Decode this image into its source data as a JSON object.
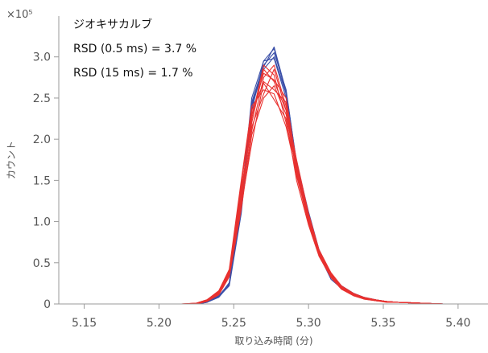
{
  "chart_data": {
    "type": "line",
    "xlabel": "取り込み時間 (分)",
    "ylabel": "カウント",
    "y_multiplier": "×10⁵",
    "xlim": [
      5.133,
      5.42
    ],
    "ylim": [
      0,
      3.3
    ],
    "x_ticks": [
      "5.15",
      "5.20",
      "5.25",
      "5.30",
      "5.35",
      "5.40"
    ],
    "y_ticks": [
      "0",
      "0.5",
      "1.0",
      "1.5",
      "2.0",
      "2.5",
      "3.0"
    ],
    "annotations": [
      "ジオキサカルブ",
      "RSD (0.5 ms) = 3.7 %",
      "RSD (15 ms) = 1.7 %"
    ],
    "grid": false,
    "colors": {
      "blue": "#3a4fa8",
      "red": "#e8312f"
    },
    "x": [
      5.133,
      5.2,
      5.215,
      5.225,
      5.232,
      5.24,
      5.247,
      5.255,
      5.262,
      5.27,
      5.277,
      5.285,
      5.292,
      5.3,
      5.307,
      5.315,
      5.322,
      5.33,
      5.337,
      5.345,
      5.352,
      5.36,
      5.375,
      5.39,
      5.42
    ],
    "series": [
      {
        "color": "blue",
        "values": [
          0,
          0,
          0,
          0,
          0.02,
          0.09,
          0.22,
          1.1,
          2.35,
          2.95,
          3.1,
          2.55,
          1.65,
          1.05,
          0.62,
          0.32,
          0.2,
          0.12,
          0.08,
          0.05,
          0.03,
          0.02,
          0.01,
          0,
          0
        ]
      },
      {
        "color": "blue",
        "values": [
          0,
          0,
          0,
          0,
          0.03,
          0.1,
          0.25,
          1.2,
          2.45,
          2.9,
          3.05,
          2.6,
          1.7,
          1.1,
          0.65,
          0.35,
          0.22,
          0.13,
          0.08,
          0.05,
          0.03,
          0.02,
          0.01,
          0,
          0
        ]
      },
      {
        "color": "blue",
        "values": [
          0,
          0,
          0,
          0,
          0.02,
          0.1,
          0.24,
          1.15,
          2.4,
          2.85,
          3.0,
          2.55,
          1.68,
          1.08,
          0.63,
          0.33,
          0.21,
          0.12,
          0.07,
          0.05,
          0.03,
          0.02,
          0.01,
          0,
          0
        ]
      },
      {
        "color": "blue",
        "values": [
          0,
          0,
          0,
          0,
          0.03,
          0.09,
          0.26,
          1.25,
          2.5,
          2.95,
          2.98,
          2.5,
          1.62,
          1.03,
          0.6,
          0.3,
          0.19,
          0.11,
          0.07,
          0.04,
          0.03,
          0.02,
          0.01,
          0,
          0
        ]
      },
      {
        "color": "blue",
        "values": [
          0,
          0,
          0,
          0,
          0.02,
          0.08,
          0.23,
          1.18,
          2.42,
          2.88,
          3.12,
          2.58,
          1.72,
          1.12,
          0.66,
          0.36,
          0.22,
          0.13,
          0.08,
          0.05,
          0.03,
          0.02,
          0.01,
          0,
          0
        ]
      },
      {
        "color": "red",
        "values": [
          0,
          0,
          0,
          0,
          0.04,
          0.12,
          0.35,
          1.3,
          2.3,
          2.8,
          2.72,
          2.5,
          1.7,
          1.05,
          0.63,
          0.36,
          0.2,
          0.12,
          0.07,
          0.05,
          0.03,
          0.02,
          0.01,
          0,
          0
        ]
      },
      {
        "color": "red",
        "values": [
          0,
          0,
          0,
          0.01,
          0.05,
          0.15,
          0.4,
          1.4,
          2.15,
          2.55,
          2.85,
          2.35,
          1.6,
          1.0,
          0.6,
          0.34,
          0.2,
          0.12,
          0.07,
          0.04,
          0.03,
          0.02,
          0.01,
          0,
          0
        ]
      },
      {
        "color": "red",
        "values": [
          0,
          0,
          0,
          0,
          0.04,
          0.14,
          0.38,
          1.2,
          1.95,
          2.7,
          2.6,
          2.45,
          1.55,
          1.02,
          0.62,
          0.35,
          0.19,
          0.11,
          0.07,
          0.04,
          0.03,
          0.02,
          0.01,
          0,
          0
        ]
      },
      {
        "color": "red",
        "values": [
          0,
          0,
          0,
          0,
          0.03,
          0.12,
          0.36,
          1.35,
          2.25,
          2.9,
          2.78,
          2.2,
          1.65,
          1.08,
          0.64,
          0.37,
          0.21,
          0.12,
          0.08,
          0.05,
          0.03,
          0.02,
          0.01,
          0,
          0
        ]
      },
      {
        "color": "red",
        "values": [
          0,
          0,
          0,
          0.01,
          0.05,
          0.16,
          0.42,
          1.5,
          2.4,
          2.6,
          2.55,
          2.15,
          1.58,
          0.98,
          0.6,
          0.33,
          0.18,
          0.11,
          0.06,
          0.04,
          0.03,
          0.02,
          0.01,
          0,
          0
        ]
      },
      {
        "color": "red",
        "values": [
          0,
          0,
          0,
          0,
          0.04,
          0.13,
          0.37,
          1.25,
          2.1,
          2.75,
          2.9,
          2.4,
          1.75,
          1.1,
          0.66,
          0.38,
          0.22,
          0.13,
          0.08,
          0.05,
          0.03,
          0.02,
          0.01,
          0,
          0
        ]
      },
      {
        "color": "red",
        "values": [
          0,
          0,
          0,
          0,
          0.03,
          0.11,
          0.33,
          1.15,
          2.05,
          2.5,
          2.65,
          2.3,
          1.62,
          1.04,
          0.61,
          0.35,
          0.2,
          0.12,
          0.07,
          0.04,
          0.03,
          0.02,
          0.01,
          0,
          0
        ]
      },
      {
        "color": "red",
        "values": [
          0,
          0,
          0,
          0.01,
          0.05,
          0.14,
          0.39,
          1.45,
          2.35,
          2.68,
          2.48,
          2.25,
          1.5,
          0.96,
          0.58,
          0.32,
          0.18,
          0.1,
          0.06,
          0.04,
          0.02,
          0.02,
          0.01,
          0,
          0
        ]
      },
      {
        "color": "red",
        "values": [
          0,
          0,
          0,
          0,
          0.04,
          0.13,
          0.36,
          1.3,
          2.2,
          2.85,
          2.7,
          2.35,
          1.68,
          1.06,
          0.63,
          0.36,
          0.2,
          0.12,
          0.07,
          0.05,
          0.03,
          0.02,
          0.01,
          0,
          0
        ]
      }
    ]
  }
}
